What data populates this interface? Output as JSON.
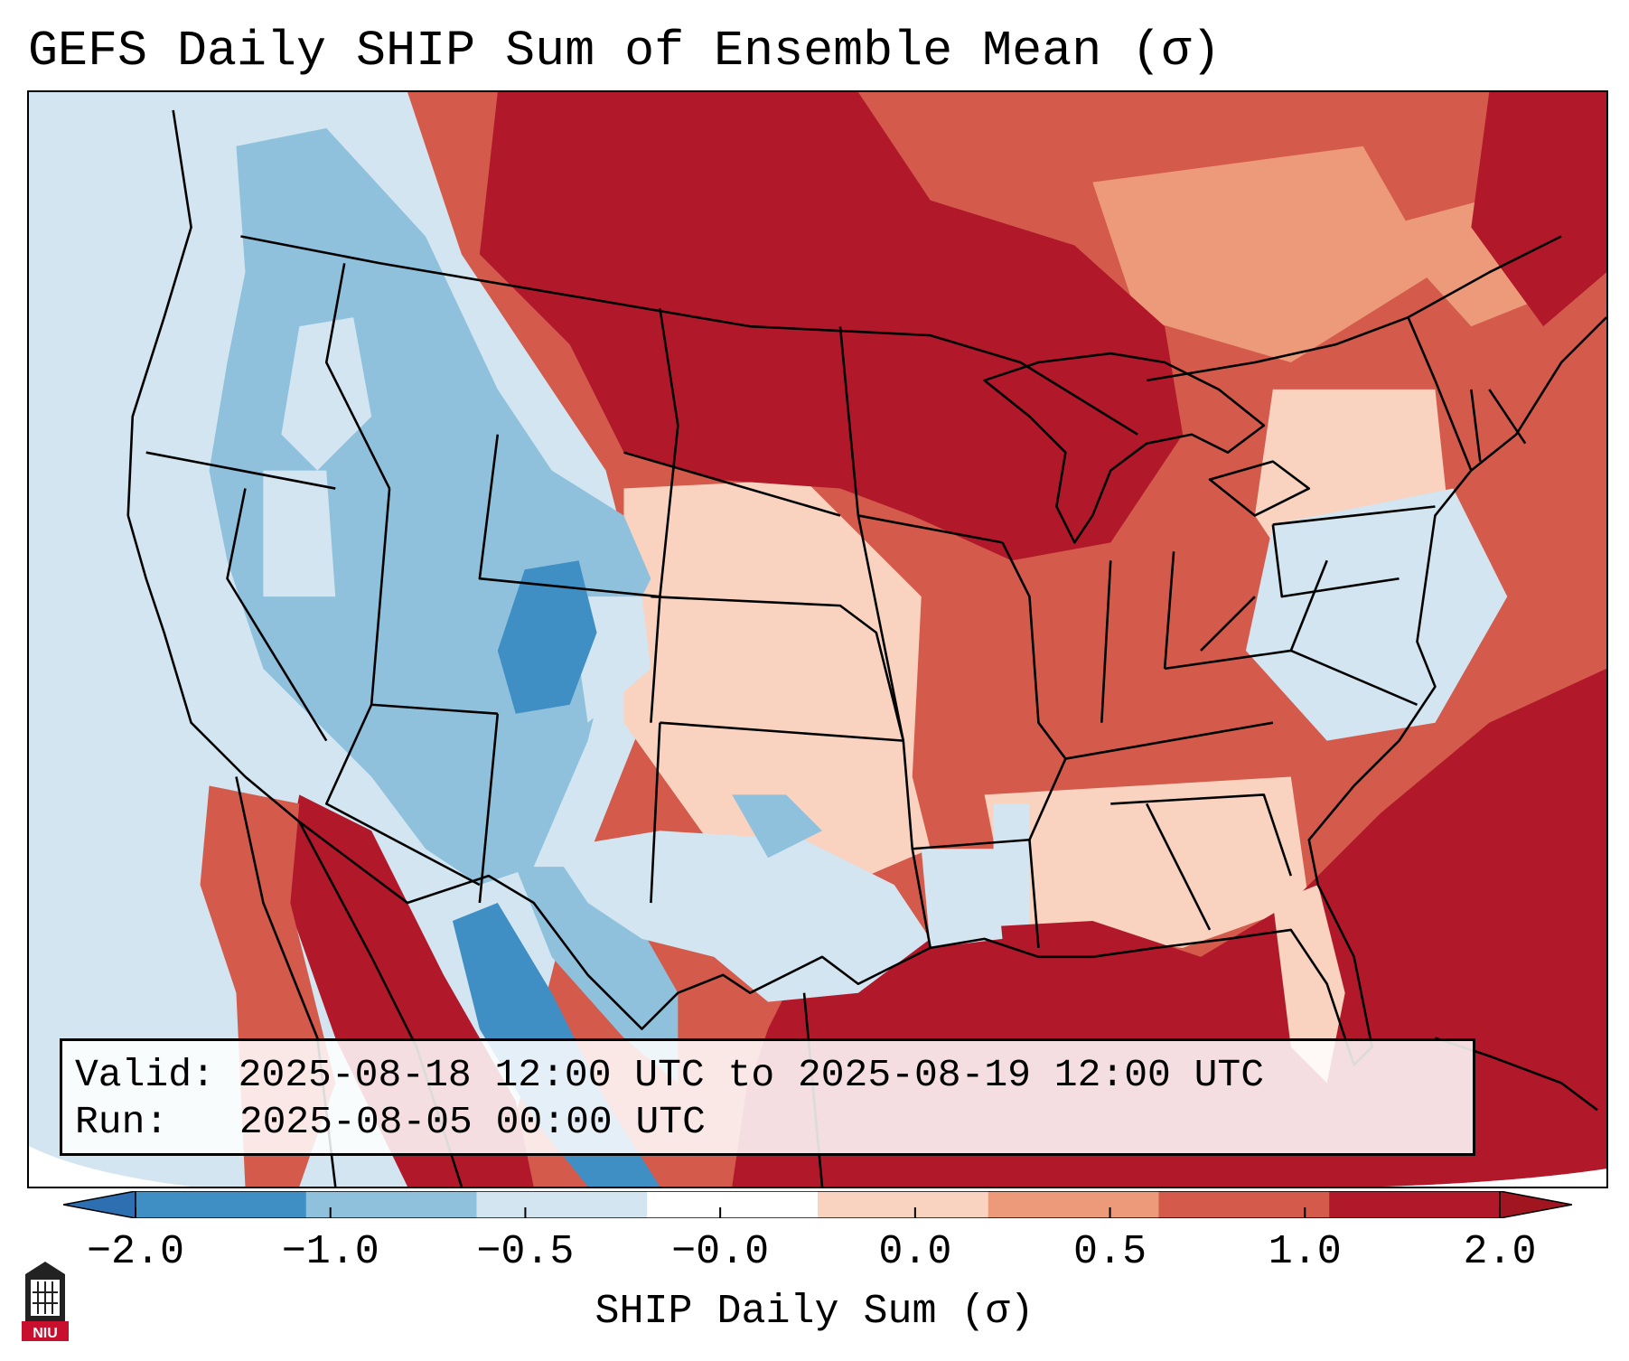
{
  "title": "GEFS Daily SHIP Sum of Ensemble Mean (σ)",
  "info": {
    "valid_label": "Valid:",
    "valid_value": "2025-08-18 12:00 UTC to 2025-08-19 12:00 UTC",
    "run_label": "Run:",
    "run_value": "2025-08-05 00:00 UTC"
  },
  "colorbar": {
    "label": "SHIP Daily Sum (σ)",
    "ticks": [
      "−2.0",
      "−1.0",
      "−0.5",
      "−0.0",
      "0.0",
      "0.5",
      "1.0",
      "2.0"
    ],
    "colors": [
      "#3f8fc4",
      "#8fc1dd",
      "#d2e5f0",
      "#ffffff",
      "#f9d3c0",
      "#ed9a7a",
      "#d45a4b",
      "#b1192b"
    ],
    "extend_low_color": "#2d6fb0",
    "extend_high_color": "#a0151f"
  },
  "logo": {
    "text": "NIU",
    "icon": "university-tower-icon"
  }
}
